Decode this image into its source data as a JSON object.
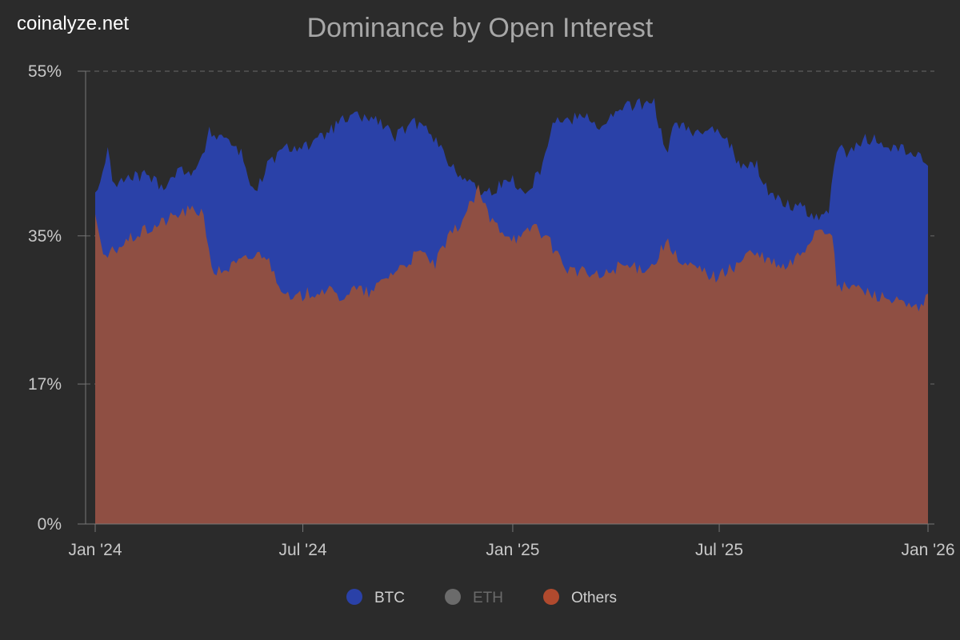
{
  "brand": "coinalyze.net",
  "colors": {
    "background": "#2b2b2b",
    "btc": "#2a41a8",
    "eth": "#6b6b6b",
    "others": "#b04a2e",
    "others_fill": "#8f4f43",
    "grid": "#6a6a6a",
    "text": "#c8c8c8"
  },
  "chart_data": {
    "type": "area",
    "stacking": "stacked percent of open interest",
    "title": "Dominance by Open Interest",
    "xlabel": "",
    "ylabel": "",
    "ylim": [
      0,
      55
    ],
    "y_ticks": [
      {
        "value": 55,
        "label": "55%"
      },
      {
        "value": 35,
        "label": "35%"
      },
      {
        "value": 17,
        "label": "17%"
      },
      {
        "value": 0,
        "label": "0%"
      }
    ],
    "x_ticks": [
      {
        "date": "2024-01-01",
        "label": "Jan '24"
      },
      {
        "date": "2024-07-01",
        "label": "Jul '24"
      },
      {
        "date": "2025-01-01",
        "label": "Jan '25"
      },
      {
        "date": "2025-07-01",
        "label": "Jul '25"
      },
      {
        "date": "2026-01-01",
        "label": "Jan '26"
      }
    ],
    "grid": "dashed horizontal lines",
    "legend_position": "bottom-center",
    "legend": [
      {
        "name": "BTC",
        "color": "#2a41a8",
        "active": true
      },
      {
        "name": "ETH",
        "color": "#6b6b6b",
        "active": false
      },
      {
        "name": "Others",
        "color": "#b04a2e",
        "active": true
      }
    ],
    "series": [
      {
        "name": "BTC",
        "color": "#2a41a8",
        "points": [
          [
            "2024-01-01",
            40
          ],
          [
            "2024-01-12",
            45
          ],
          [
            "2024-01-18",
            41
          ],
          [
            "2024-01-30",
            42
          ],
          [
            "2024-02-15",
            42.5
          ],
          [
            "2024-02-28",
            41
          ],
          [
            "2024-03-15",
            43
          ],
          [
            "2024-03-31",
            43
          ],
          [
            "2024-04-10",
            47.5
          ],
          [
            "2024-04-25",
            47
          ],
          [
            "2024-05-08",
            45
          ],
          [
            "2024-05-20",
            40
          ],
          [
            "2024-06-02",
            44
          ],
          [
            "2024-06-15",
            45.5
          ],
          [
            "2024-06-28",
            46
          ],
          [
            "2024-07-10",
            46
          ],
          [
            "2024-07-22",
            47.5
          ],
          [
            "2024-08-05",
            49
          ],
          [
            "2024-08-20",
            49.5
          ],
          [
            "2024-09-05",
            49
          ],
          [
            "2024-09-20",
            47
          ],
          [
            "2024-10-05",
            48.5
          ],
          [
            "2024-10-15",
            49
          ],
          [
            "2024-10-28",
            46
          ],
          [
            "2024-11-10",
            43
          ],
          [
            "2024-11-22",
            42
          ],
          [
            "2024-12-05",
            40
          ],
          [
            "2024-12-20",
            41
          ],
          [
            "2025-01-01",
            42
          ],
          [
            "2025-01-12",
            40
          ],
          [
            "2025-01-25",
            43
          ],
          [
            "2025-02-05",
            49
          ],
          [
            "2025-02-20",
            49
          ],
          [
            "2025-03-05",
            50
          ],
          [
            "2025-03-20",
            48
          ],
          [
            "2025-04-05",
            50.5
          ],
          [
            "2025-04-20",
            51
          ],
          [
            "2025-05-05",
            51
          ],
          [
            "2025-05-15",
            45
          ],
          [
            "2025-05-25",
            49
          ],
          [
            "2025-06-10",
            47
          ],
          [
            "2025-06-25",
            48.5
          ],
          [
            "2025-07-08",
            47
          ],
          [
            "2025-07-20",
            43
          ],
          [
            "2025-08-01",
            44
          ],
          [
            "2025-08-15",
            40
          ],
          [
            "2025-08-28",
            39
          ],
          [
            "2025-09-10",
            38.5
          ],
          [
            "2025-09-22",
            37.5
          ],
          [
            "2025-10-05",
            38
          ],
          [
            "2025-10-12",
            45.5
          ],
          [
            "2025-10-25",
            45
          ],
          [
            "2025-11-08",
            47
          ],
          [
            "2025-11-22",
            46
          ],
          [
            "2025-12-05",
            45.5
          ],
          [
            "2025-12-18",
            45
          ],
          [
            "2025-12-31",
            43.5
          ]
        ]
      },
      {
        "name": "Others",
        "color": "#b04a2e",
        "points": [
          [
            "2024-01-01",
            38
          ],
          [
            "2024-01-08",
            32
          ],
          [
            "2024-01-20",
            33.5
          ],
          [
            "2024-02-05",
            35
          ],
          [
            "2024-02-20",
            36
          ],
          [
            "2024-03-05",
            37
          ],
          [
            "2024-03-20",
            38
          ],
          [
            "2024-04-05",
            38
          ],
          [
            "2024-04-12",
            30.5
          ],
          [
            "2024-04-25",
            31
          ],
          [
            "2024-05-10",
            32
          ],
          [
            "2024-05-28",
            33
          ],
          [
            "2024-06-08",
            30
          ],
          [
            "2024-06-20",
            27
          ],
          [
            "2024-07-05",
            28
          ],
          [
            "2024-07-20",
            28.5
          ],
          [
            "2024-08-02",
            27.5
          ],
          [
            "2024-08-15",
            28.5
          ],
          [
            "2024-08-30",
            28
          ],
          [
            "2024-09-12",
            30
          ],
          [
            "2024-09-28",
            31.5
          ],
          [
            "2024-10-12",
            33
          ],
          [
            "2024-10-25",
            31.5
          ],
          [
            "2024-11-05",
            34.5
          ],
          [
            "2024-11-18",
            37
          ],
          [
            "2024-12-02",
            40.5
          ],
          [
            "2024-12-12",
            37
          ],
          [
            "2024-12-25",
            35.5
          ],
          [
            "2025-01-08",
            34.5
          ],
          [
            "2025-01-20",
            36.5
          ],
          [
            "2025-02-03",
            34
          ],
          [
            "2025-02-18",
            31
          ],
          [
            "2025-03-05",
            30.5
          ],
          [
            "2025-03-20",
            30
          ],
          [
            "2025-04-05",
            31.5
          ],
          [
            "2025-04-20",
            31
          ],
          [
            "2025-05-05",
            31.5
          ],
          [
            "2025-05-15",
            34.5
          ],
          [
            "2025-05-28",
            31.5
          ],
          [
            "2025-06-12",
            31
          ],
          [
            "2025-06-28",
            30
          ],
          [
            "2025-07-12",
            31
          ],
          [
            "2025-07-28",
            33
          ],
          [
            "2025-08-12",
            32
          ],
          [
            "2025-08-28",
            31
          ],
          [
            "2025-09-12",
            33
          ],
          [
            "2025-09-25",
            36
          ],
          [
            "2025-10-08",
            35.5
          ],
          [
            "2025-10-12",
            28.5
          ],
          [
            "2025-10-25",
            29
          ],
          [
            "2025-11-10",
            28
          ],
          [
            "2025-11-25",
            27.5
          ],
          [
            "2025-12-10",
            26.5
          ],
          [
            "2025-12-25",
            26
          ],
          [
            "2025-12-31",
            28
          ]
        ]
      }
    ]
  }
}
